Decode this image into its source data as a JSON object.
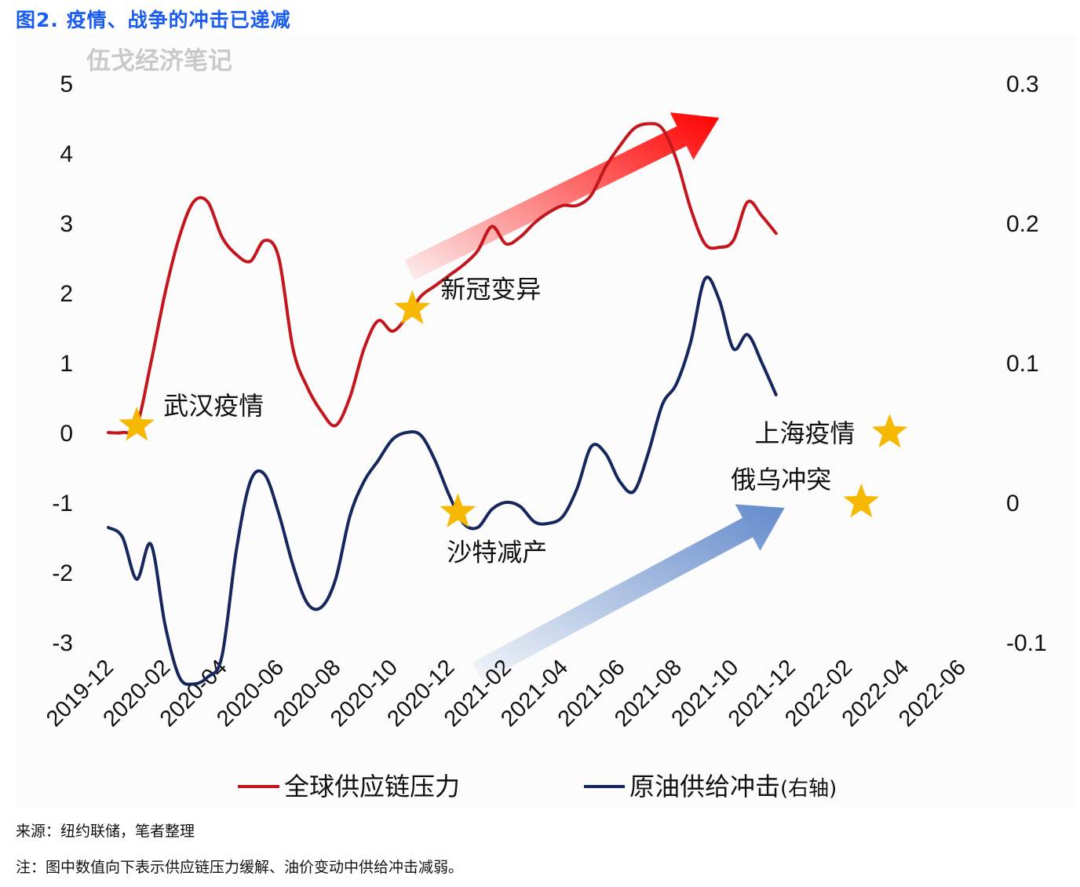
{
  "figure_title": "图2. 疫情、战争的冲击已递减",
  "watermark": "伍戈经济笔记",
  "source_text": "来源：纽约联储，笔者整理",
  "note_text": "注：图中数值向下表示供应链压力缓解、油价变动中供给冲击减弱。",
  "colors": {
    "title": "#1a5cf0",
    "series_red": "#c4161c",
    "series_navy": "#16275e",
    "star": "#f6b800"
  },
  "chart_data": {
    "type": "line",
    "title": "",
    "x_tick_labels": [
      "2019-12",
      "2020-02",
      "2020-04",
      "2020-06",
      "2020-08",
      "2020-10",
      "2020-12",
      "2021-02",
      "2021-04",
      "2021-06",
      "2021-08",
      "2021-10",
      "2021-12",
      "2022-02",
      "2022-04",
      "2022-06"
    ],
    "left_axis": {
      "range": [
        -3,
        5
      ],
      "ticks": [
        "5",
        "4",
        "3",
        "2",
        "1",
        "0",
        "-1",
        "-2",
        "-3"
      ]
    },
    "right_axis": {
      "range": [
        -0.1,
        0.3
      ],
      "ticks": [
        "0.3",
        "0.2",
        "0.1",
        "0",
        "-0.1"
      ],
      "label": "右轴"
    },
    "grid": false,
    "legend_position": "bottom",
    "series": [
      {
        "name": "全球供应链压力",
        "axis": "left",
        "x": [
          0,
          0.5,
          1,
          1.5,
          2,
          2.5,
          3,
          3.5,
          4,
          4.5,
          5,
          5.5,
          6,
          6.5,
          7,
          7.5,
          8,
          8.5,
          9,
          9.5,
          10,
          10.5,
          11,
          11.5,
          12,
          12.5,
          13,
          13.5,
          14,
          14.5,
          15,
          15.5,
          16,
          16.5,
          17,
          17.5,
          18,
          18.5,
          19,
          19.5,
          20,
          20.5,
          21,
          21.5,
          22,
          22.5,
          23,
          23.5,
          24,
          24.5,
          25,
          25.5,
          26,
          26.5,
          27,
          27.5,
          28,
          28.5,
          29,
          29.5,
          30
        ],
        "values": [
          0,
          0,
          0.1,
          1.0,
          2.0,
          2.8,
          3.3,
          3.3,
          2.8,
          2.55,
          2.45,
          2.75,
          2.5,
          1.2,
          0.65,
          0.3,
          0.1,
          0.5,
          1.2,
          1.6,
          1.45,
          1.65,
          1.95,
          2.1,
          2.25,
          2.4,
          2.6,
          2.95,
          2.7,
          2.8,
          3.0,
          3.15,
          3.25,
          3.25,
          3.4,
          3.8,
          4.1,
          4.35,
          4.42,
          4.35,
          3.9,
          3.2,
          2.7,
          2.65,
          2.75,
          3.3,
          3.1,
          2.85,
          null,
          null,
          null,
          null,
          null,
          null,
          null,
          null,
          null,
          null,
          null,
          null,
          null
        ]
      },
      {
        "name": "原油供给冲击",
        "axis": "right",
        "x": [
          0,
          0.5,
          1,
          1.5,
          2,
          2.5,
          3,
          3.5,
          4,
          4.5,
          5,
          5.5,
          6,
          6.5,
          7,
          7.5,
          8,
          8.5,
          9,
          9.5,
          10,
          10.5,
          11,
          11.5,
          12,
          12.5,
          13,
          13.5,
          14,
          14.5,
          15,
          15.5,
          16,
          16.5,
          17,
          17.5,
          18,
          18.5,
          19,
          19.5,
          20,
          20.5,
          21,
          21.5,
          22,
          22.5,
          23,
          23.5,
          24,
          24.5,
          25,
          25.5,
          26,
          26.5,
          27,
          27.5,
          28,
          28.5,
          29,
          29.5,
          30
        ],
        "values": [
          -0.018,
          -0.025,
          -0.055,
          -0.03,
          -0.088,
          -0.125,
          -0.13,
          -0.125,
          -0.11,
          -0.035,
          0.015,
          0.02,
          -0.008,
          -0.045,
          -0.072,
          -0.075,
          -0.055,
          -0.01,
          0.015,
          0.03,
          0.045,
          0.05,
          0.048,
          0.03,
          0.005,
          -0.015,
          -0.018,
          -0.005,
          0.0,
          -0.003,
          -0.014,
          -0.015,
          -0.01,
          0.01,
          0.04,
          0.035,
          0.015,
          0.008,
          0.035,
          0.07,
          0.085,
          0.115,
          0.16,
          0.145,
          0.11,
          0.12,
          0.1,
          0.077,
          null,
          null,
          null,
          null,
          null,
          null,
          null,
          null,
          null,
          null,
          null,
          null,
          null
        ]
      }
    ],
    "x_step_months": 1,
    "annotations": [
      {
        "label": "武汉疫情",
        "series": 0,
        "month": 1
      },
      {
        "label": "新冠变异",
        "series": 0,
        "month": 10.7
      },
      {
        "label": "上海疫情",
        "series": 0,
        "month": 27.5
      },
      {
        "label": "沙特减产",
        "series": 1,
        "month": 12.3
      },
      {
        "label": "俄乌冲突",
        "series": 1,
        "month": 26.5
      }
    ]
  }
}
